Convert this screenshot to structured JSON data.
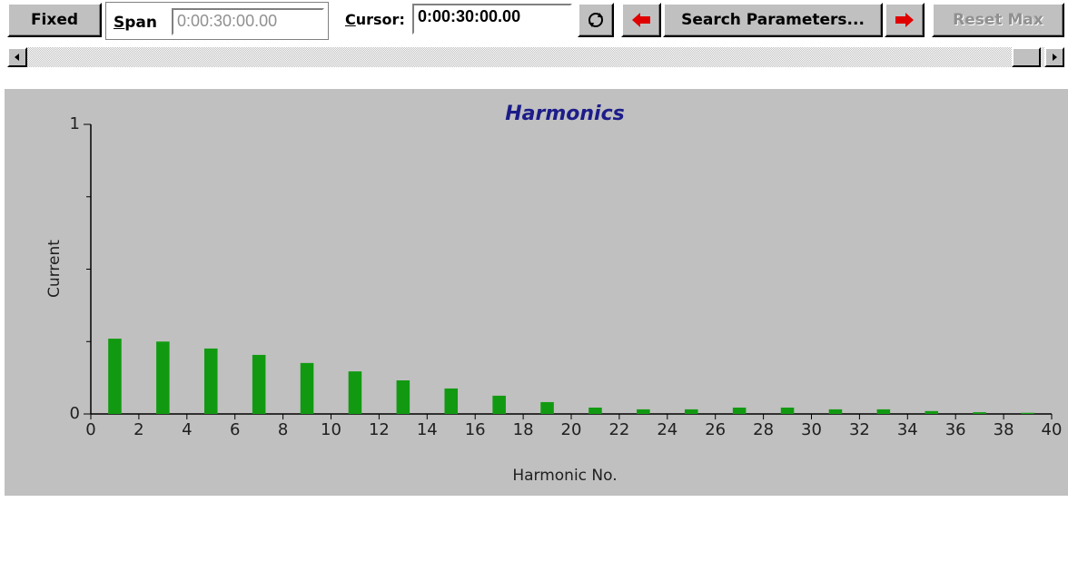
{
  "toolbar": {
    "fixed": "Fixed",
    "span_label": "Span",
    "span_value": "0:00:30:00.00",
    "cursor_label": "Cursor:",
    "cursor_value": "0:00:30:00.00",
    "search": "Search Parameters...",
    "reset": "Reset Max"
  },
  "chart_data": {
    "type": "bar",
    "title": "Harmonics",
    "x_label": "Harmonic No.",
    "y_label": "Current",
    "x": [
      1,
      3,
      5,
      7,
      9,
      11,
      13,
      15,
      17,
      19,
      21,
      23,
      25,
      27,
      29,
      31,
      33,
      35,
      37,
      39
    ],
    "values": [
      0.26,
      0.25,
      0.226,
      0.204,
      0.176,
      0.147,
      0.116,
      0.088,
      0.063,
      0.041,
      0.022,
      0.016,
      0.016,
      0.022,
      0.022,
      0.016,
      0.016,
      0.01,
      0.006,
      0.004
    ],
    "color": "#119a11",
    "xlim": [
      0,
      40
    ],
    "xticks": [
      0,
      2,
      4,
      6,
      8,
      10,
      12,
      14,
      16,
      18,
      20,
      22,
      24,
      26,
      28,
      30,
      32,
      34,
      36,
      38,
      40
    ],
    "ylim": [
      0,
      1
    ],
    "yticks": [
      0,
      1
    ],
    "yminor_ticks": [
      0.25,
      0.5,
      0.75
    ]
  }
}
